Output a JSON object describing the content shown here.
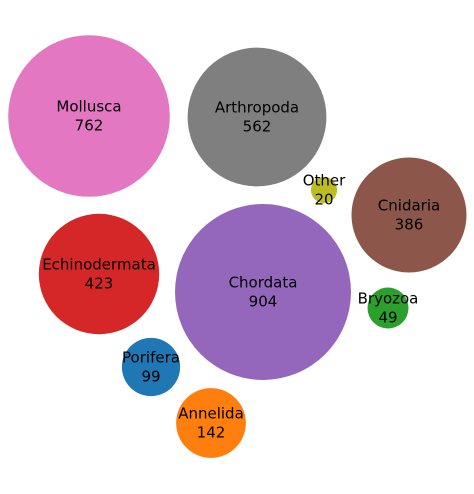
{
  "chart_data": {
    "type": "bubble",
    "title": "",
    "bubbles": [
      {
        "label": "Mollusca",
        "value": 762,
        "color": "#e377c2"
      },
      {
        "label": "Arthropoda",
        "value": 562,
        "color": "#7f7f7f"
      },
      {
        "label": "Other",
        "value": 20,
        "color": "#bcbd22"
      },
      {
        "label": "Cnidaria",
        "value": 386,
        "color": "#8c564b"
      },
      {
        "label": "Echinodermata",
        "value": 423,
        "color": "#d62728"
      },
      {
        "label": "Chordata",
        "value": 904,
        "color": "#9467bd"
      },
      {
        "label": "Bryozoa",
        "value": 49,
        "color": "#2ca02c"
      },
      {
        "label": "Porifera",
        "value": 99,
        "color": "#1f77b4"
      },
      {
        "label": "Annelida",
        "value": 142,
        "color": "#ff7f0e"
      }
    ]
  }
}
